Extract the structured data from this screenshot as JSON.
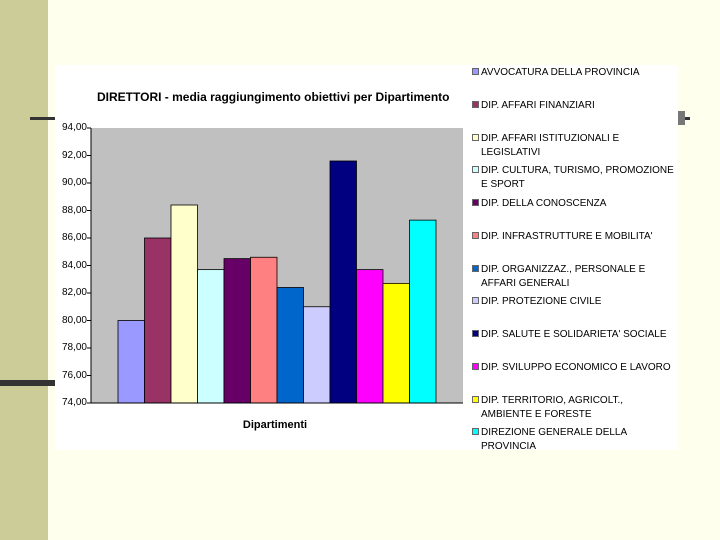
{
  "chart_data": {
    "type": "bar",
    "title": "DIRETTORI - media raggiungimento obiettivi per Dipartimento",
    "xlabel": "Dipartimenti",
    "ylabel": "",
    "ylim": [
      74,
      94
    ],
    "yticks": [
      "74,00",
      "76,00",
      "78,00",
      "80,00",
      "82,00",
      "84,00",
      "86,00",
      "88,00",
      "90,00",
      "92,00",
      "94,00"
    ],
    "legend_position": "right",
    "grid": false,
    "series": [
      {
        "name": "AVVOCATURA DELLA PROVINCIA",
        "value": 80.0,
        "color": "#9999ff"
      },
      {
        "name": "DIP. AFFARI FINANZIARI",
        "value": 86.0,
        "color": "#993366"
      },
      {
        "name": "DIP. AFFARI ISTITUZIONALI E LEGISLATIVI",
        "value": 88.4,
        "color": "#ffffcc"
      },
      {
        "name": "DIP. CULTURA, TURISMO, PROMOZIONE E SPORT",
        "value": 83.7,
        "color": "#ccffff"
      },
      {
        "name": "DIP. DELLA CONOSCENZA",
        "value": 84.5,
        "color": "#660066"
      },
      {
        "name": "DIP. INFRASTRUTTURE E MOBILITA'",
        "value": 84.6,
        "color": "#ff8080"
      },
      {
        "name": "DIP. ORGANIZZAZ., PERSONALE E AFFARI GENERALI",
        "value": 82.4,
        "color": "#0066cc"
      },
      {
        "name": "DIP. PROTEZIONE CIVILE",
        "value": 81.0,
        "color": "#ccccff"
      },
      {
        "name": "DIP. SALUTE E SOLIDARIETA' SOCIALE",
        "value": 91.6,
        "color": "#000080"
      },
      {
        "name": "DIP. SVILUPPO ECONOMICO E LAVORO",
        "value": 83.7,
        "color": "#ff00ff"
      },
      {
        "name": "DIP. TERRITORIO, AGRICOLT., AMBIENTE E FORESTE",
        "value": 82.7,
        "color": "#ffff00"
      },
      {
        "name": "DIREZIONE GENERALE DELLA PROVINCIA",
        "value": 87.3,
        "color": "#00ffff"
      }
    ]
  },
  "colors": {
    "plot_background": "#c0c0c0",
    "slide_background": "#ffffee",
    "accent_band": "#cccc99"
  }
}
